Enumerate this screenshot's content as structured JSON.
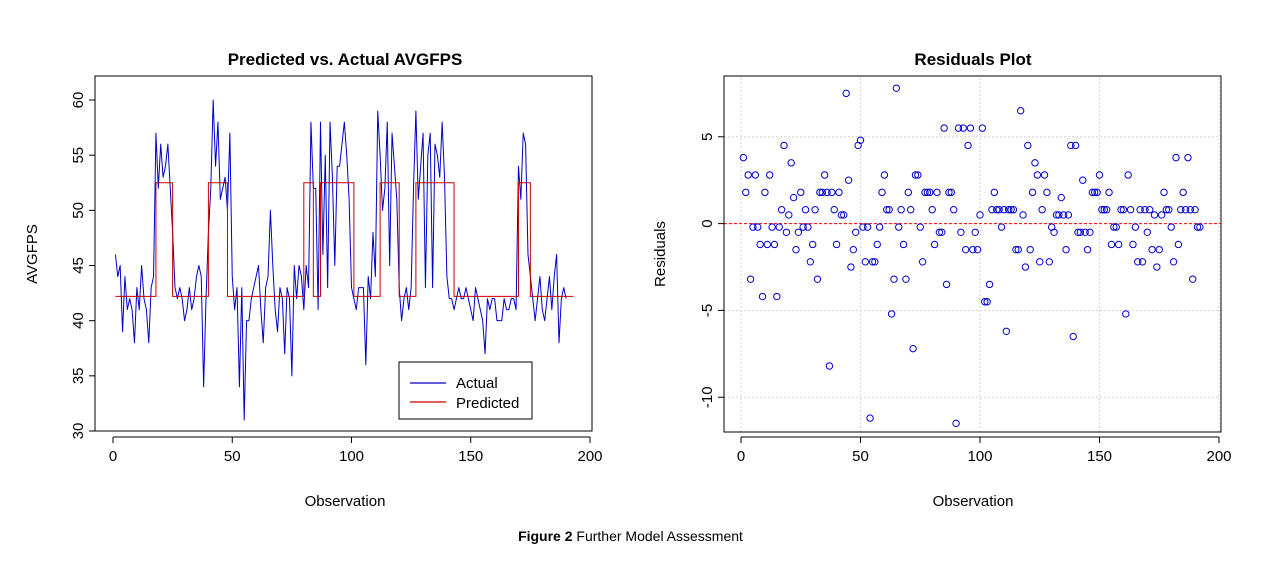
{
  "caption": {
    "label": "Figure 2",
    "text": "Further Model Assessment"
  },
  "chart_data": [
    {
      "type": "line",
      "title": "Predicted vs. Actual AVGFPS",
      "xlabel": "Observation",
      "ylabel": "AVGFPS",
      "xlim": [
        0,
        200
      ],
      "ylim": [
        30,
        61
      ],
      "xticks": [
        0,
        50,
        100,
        150,
        200
      ],
      "yticks": [
        30,
        35,
        40,
        45,
        50,
        55,
        60
      ],
      "legend_position": "bottom-right",
      "grid": false,
      "series": [
        {
          "name": "Actual",
          "color": "#0000cc",
          "x_start": 1,
          "values": [
            46,
            44,
            45,
            39,
            44,
            41,
            42,
            41,
            38,
            43,
            41,
            45,
            42,
            41,
            38,
            43,
            44,
            57,
            52,
            56,
            53,
            54,
            56,
            52,
            48,
            43,
            42,
            43,
            42,
            40,
            41,
            43,
            41,
            42,
            44,
            45,
            44,
            34,
            42,
            48,
            52,
            60,
            54,
            58,
            51,
            52,
            53,
            50,
            57,
            44,
            41,
            43,
            34,
            43,
            31,
            40,
            40,
            42,
            43,
            44,
            45,
            41,
            38,
            43,
            44,
            50,
            45,
            41,
            39,
            43,
            42,
            37,
            43,
            42,
            35,
            45,
            42,
            45,
            44,
            41,
            45,
            43,
            58,
            52,
            52,
            41,
            58,
            46,
            55,
            43,
            58,
            53,
            45,
            54,
            54,
            56,
            58,
            55,
            51,
            43,
            42,
            41,
            43,
            43,
            43,
            36,
            44,
            42,
            48,
            44,
            59,
            55,
            50,
            52,
            58,
            45,
            57,
            54,
            51,
            43,
            40,
            42,
            43,
            41,
            43,
            52,
            59,
            51,
            54,
            57,
            43,
            55,
            57,
            43,
            56,
            55,
            53,
            58,
            53,
            44,
            42,
            42,
            41,
            42,
            43,
            42,
            42,
            43,
            42,
            41,
            40,
            43,
            42,
            41,
            40,
            37,
            42,
            41,
            42,
            42,
            40,
            40,
            40,
            42,
            41,
            41,
            42,
            42,
            41,
            54,
            51,
            57,
            56,
            46,
            44,
            42,
            40,
            42,
            44,
            41,
            40,
            42,
            44,
            41,
            44,
            46,
            38,
            42,
            43,
            42
          ]
        },
        {
          "name": "Predicted",
          "color": "#cc0000",
          "segments": [
            {
              "x0": 1,
              "x1": 18,
              "y": 42.2
            },
            {
              "x0": 18,
              "x1": 25,
              "y": 52.5
            },
            {
              "x0": 25,
              "x1": 40,
              "y": 42.2
            },
            {
              "x0": 40,
              "x1": 48,
              "y": 52.5
            },
            {
              "x0": 48,
              "x1": 80,
              "y": 42.2
            },
            {
              "x0": 80,
              "x1": 84,
              "y": 52.5
            },
            {
              "x0": 84,
              "x1": 87,
              "y": 42.2
            },
            {
              "x0": 87,
              "x1": 101,
              "y": 52.5
            },
            {
              "x0": 101,
              "x1": 112,
              "y": 42.2
            },
            {
              "x0": 112,
              "x1": 120,
              "y": 52.5
            },
            {
              "x0": 120,
              "x1": 127,
              "y": 42.2
            },
            {
              "x0": 127,
              "x1": 143,
              "y": 52.5
            },
            {
              "x0": 143,
              "x1": 170,
              "y": 42.2
            },
            {
              "x0": 170,
              "x1": 175,
              "y": 52.5
            },
            {
              "x0": 175,
              "x1": 193,
              "y": 42.2
            }
          ]
        }
      ]
    },
    {
      "type": "scatter",
      "title": "Residuals Plot",
      "xlabel": "Observation",
      "ylabel": "Residuals",
      "xlim": [
        0,
        200
      ],
      "ylim": [
        -12,
        8.5
      ],
      "xticks": [
        0,
        50,
        100,
        150,
        200
      ],
      "yticks": [
        -10,
        -5,
        0,
        5
      ],
      "grid": true,
      "reference_line": {
        "y": 0,
        "color": "#ff0000",
        "style": "dotted"
      },
      "series": [
        {
          "name": "",
          "color": "#0000cc",
          "x_start": 1,
          "values": [
            3.8,
            1.8,
            2.8,
            -3.2,
            -0.2,
            2.8,
            -0.2,
            -1.2,
            -4.2,
            1.8,
            -1.2,
            2.8,
            -0.2,
            -1.2,
            -4.2,
            -0.2,
            0.8,
            4.5,
            -0.5,
            0.5,
            3.5,
            1.5,
            -1.5,
            -0.5,
            1.8,
            -0.2,
            0.8,
            -0.2,
            -2.2,
            -1.2,
            0.8,
            -3.2,
            1.8,
            1.8,
            2.8,
            1.8,
            -8.2,
            1.8,
            0.8,
            -1.2,
            1.8,
            0.5,
            0.5,
            7.5,
            2.5,
            -2.5,
            -1.5,
            -0.5,
            4.5,
            4.8,
            -0.2,
            -2.2,
            -0.2,
            -11.2,
            -2.2,
            -2.2,
            -1.2,
            -0.2,
            1.8,
            2.8,
            0.8,
            0.8,
            -5.2,
            -3.2,
            7.8,
            -0.2,
            0.8,
            -1.2,
            -3.2,
            1.8,
            0.8,
            -7.2,
            2.8,
            2.8,
            -0.2,
            -2.2,
            1.8,
            1.8,
            1.8,
            0.8,
            -1.2,
            1.8,
            -0.5,
            -0.5,
            5.5,
            -3.5,
            1.8,
            1.8,
            0.8,
            -11.5,
            5.5,
            -0.5,
            5.5,
            -1.5,
            4.5,
            5.5,
            -1.5,
            -0.5,
            -1.5,
            0.5,
            5.5,
            -4.5,
            -4.5,
            -3.5,
            0.8,
            1.8,
            0.8,
            0.8,
            -0.2,
            0.8,
            -6.2,
            0.8,
            0.8,
            0.8,
            -1.5,
            -1.5,
            6.5,
            0.5,
            -2.5,
            4.5,
            -1.5,
            1.8,
            3.5,
            2.8,
            -2.2,
            0.8,
            2.8,
            1.8,
            -2.2,
            -0.2,
            -0.5,
            0.5,
            0.5,
            1.5,
            0.5,
            -1.5,
            0.5,
            4.5,
            -6.5,
            4.5,
            -0.5,
            -0.5,
            2.5,
            -0.5,
            -1.5,
            -0.5,
            1.8,
            1.8,
            1.8,
            2.8,
            0.8,
            0.8,
            0.8,
            1.8,
            -1.2,
            -0.2,
            -0.2,
            -1.2,
            0.8,
            0.8,
            -5.2,
            2.8,
            0.8,
            -1.2,
            -0.2,
            -2.2,
            0.8,
            -2.2,
            0.8,
            -0.5,
            0.8,
            -1.5,
            0.5,
            -2.5,
            -1.5,
            0.5,
            1.8,
            0.8,
            0.8,
            -0.2,
            -2.2,
            3.8,
            -1.2,
            0.8,
            1.8,
            0.8,
            3.8,
            0.8,
            -3.2,
            0.8,
            -0.2,
            -0.2
          ]
        }
      ]
    }
  ]
}
